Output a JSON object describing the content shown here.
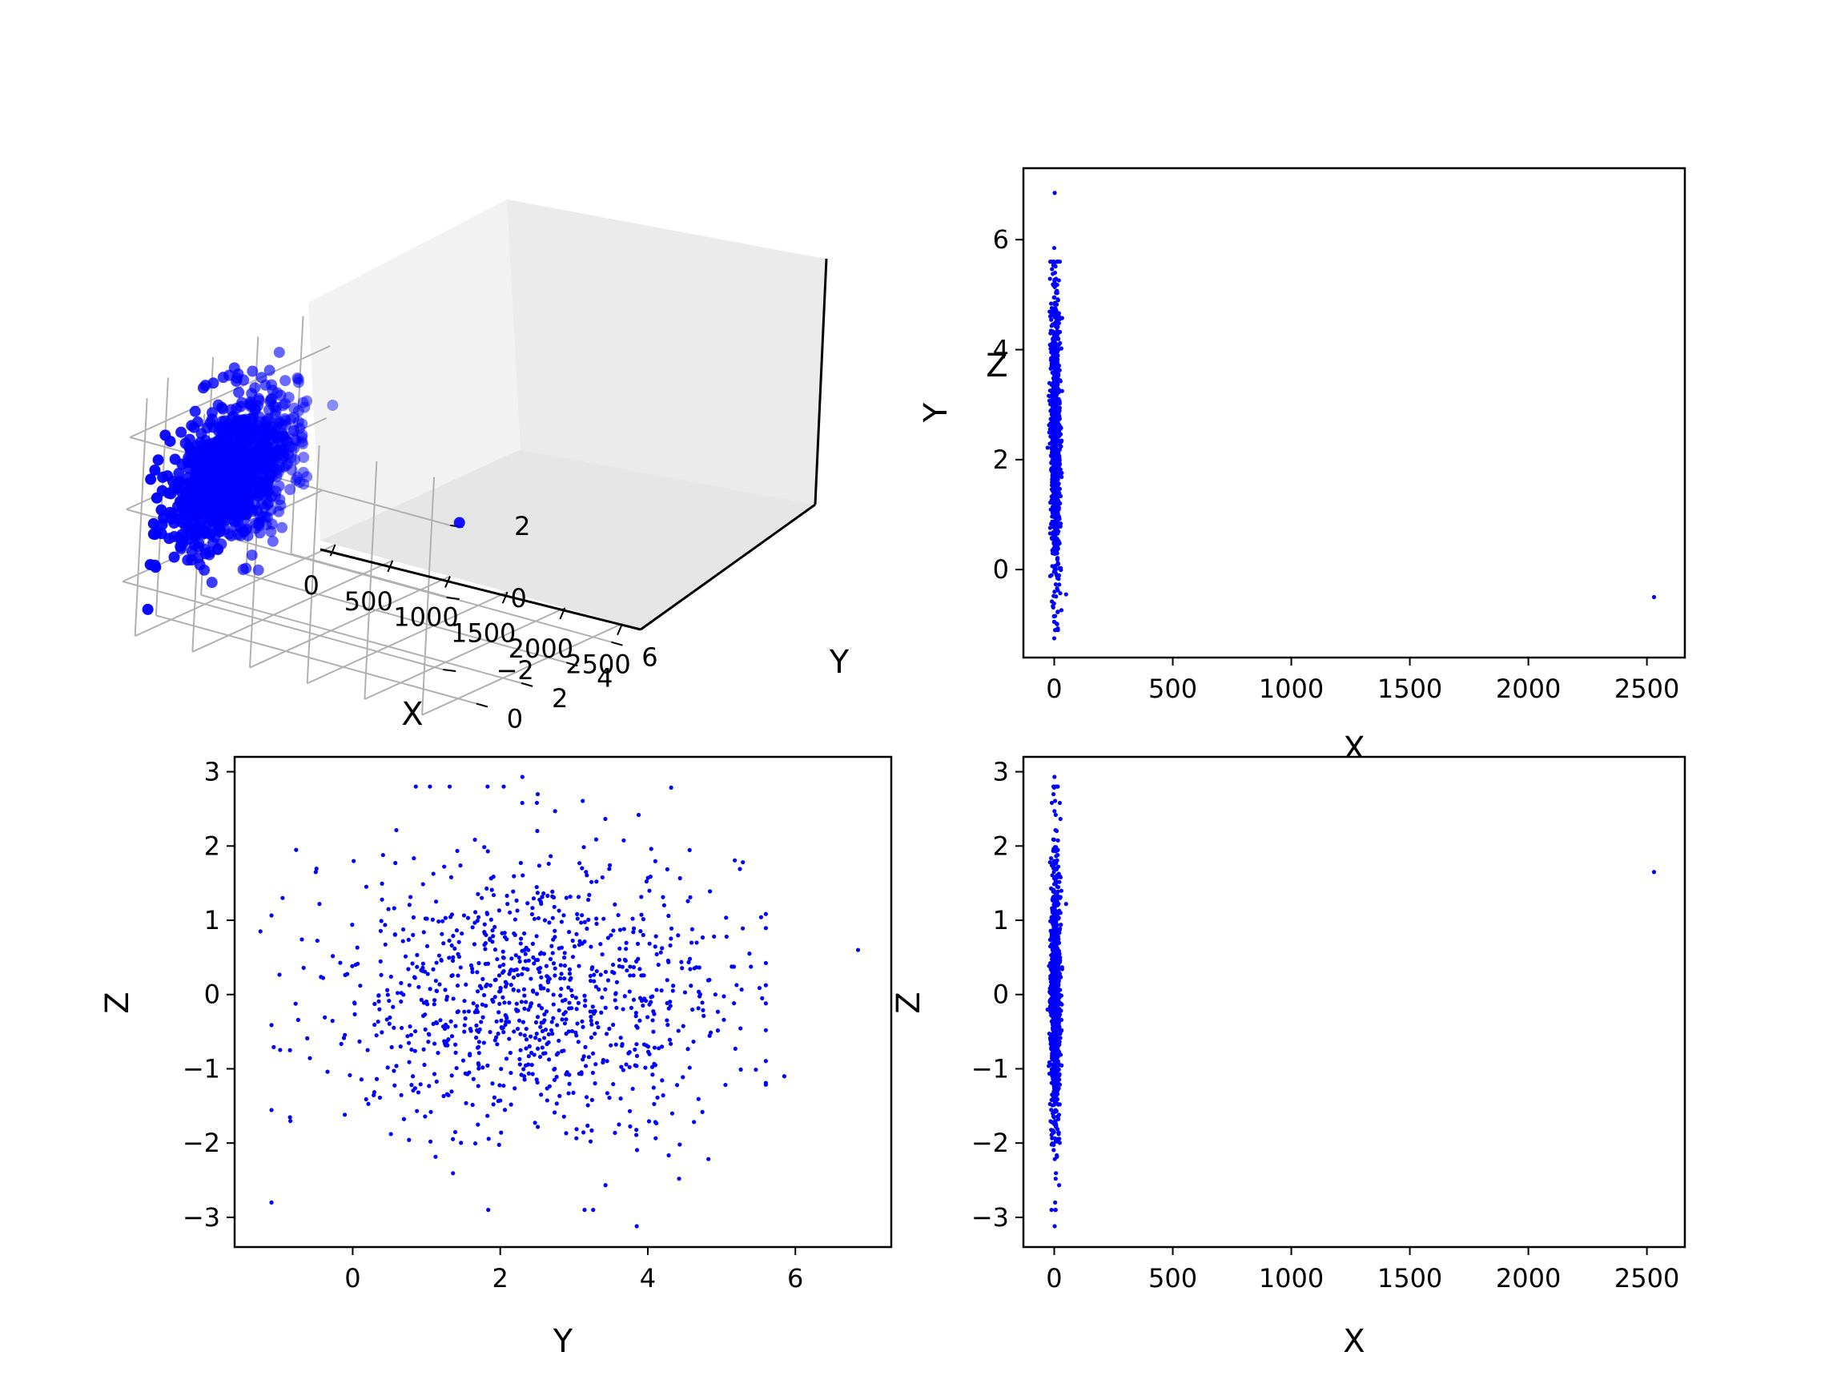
{
  "colors": {
    "points": "#0000ff",
    "pane": "#f2f2f2",
    "grid": "#b0b0b0"
  },
  "chart_data": [
    {
      "id": "xyz3d",
      "type": "scatter",
      "projection": "3d",
      "xlabel": "X",
      "ylabel": "Y",
      "zlabel": "Z",
      "xlim": [
        -130,
        2660
      ],
      "ylim": [
        -1.6,
        7.3
      ],
      "zlim": [
        -3.4,
        3.2
      ],
      "xticks": [
        0,
        500,
        1000,
        1500,
        2000,
        2500
      ],
      "xtick_labels": [
        "0",
        "500",
        "1000",
        "1500",
        "2000",
        "2500"
      ],
      "yticks": [
        0,
        2,
        4,
        6
      ],
      "ytick_labels": [
        "0",
        "2",
        "4",
        "6"
      ],
      "zticks": [
        -2,
        0,
        2
      ],
      "ztick_labels": [
        "−2",
        "0",
        "2"
      ],
      "grid": true,
      "note": "Dense cluster near X≈0, Y≈2.5, Z≈0 (about 1000 points) plus one outlier near X≈2530, Y≈−0.5, Z≈1.6"
    },
    {
      "id": "xy",
      "type": "scatter",
      "xlabel": "X",
      "ylabel": "Y",
      "xlim": [
        -130,
        2660
      ],
      "ylim": [
        -1.6,
        7.3
      ],
      "xticks": [
        0,
        500,
        1000,
        1500,
        2000,
        2500
      ],
      "xtick_labels": [
        "0",
        "500",
        "1000",
        "1500",
        "2000",
        "2500"
      ],
      "yticks": [
        0,
        2,
        4,
        6
      ],
      "ytick_labels": [
        "0",
        "2",
        "4",
        "6"
      ],
      "grid": false
    },
    {
      "id": "yz",
      "type": "scatter",
      "xlabel": "Y",
      "ylabel": "Z",
      "xlim": [
        -1.6,
        7.3
      ],
      "ylim": [
        -3.4,
        3.2
      ],
      "xticks": [
        0,
        2,
        4,
        6
      ],
      "xtick_labels": [
        "0",
        "2",
        "4",
        "6"
      ],
      "yticks": [
        -3,
        -2,
        -1,
        0,
        1,
        2,
        3
      ],
      "ytick_labels": [
        "−3",
        "−2",
        "−1",
        "0",
        "1",
        "2",
        "3"
      ],
      "grid": false
    },
    {
      "id": "xz",
      "type": "scatter",
      "xlabel": "X",
      "ylabel": "Z",
      "xlim": [
        -130,
        2660
      ],
      "ylim": [
        -3.4,
        3.2
      ],
      "xticks": [
        0,
        500,
        1000,
        1500,
        2000,
        2500
      ],
      "xtick_labels": [
        "0",
        "500",
        "1000",
        "1500",
        "2000",
        "2500"
      ],
      "yticks": [
        -3,
        -2,
        -1,
        0,
        1,
        2,
        3
      ],
      "ytick_labels": [
        "−3",
        "−2",
        "−1",
        "0",
        "1",
        "2",
        "3"
      ],
      "grid": false
    }
  ],
  "points": {
    "count": 1000,
    "x": {
      "mean": 5,
      "sd": 10
    },
    "y": {
      "mean": 2.5,
      "sd": 1.35
    },
    "z": {
      "mean": 0,
      "sd": 1.0
    },
    "outliers": [
      {
        "x": 2530,
        "y": -0.5,
        "z": 1.65
      }
    ],
    "extremes": [
      {
        "x": 2,
        "y": 6.85,
        "z": 0.6
      },
      {
        "x": 0,
        "y": -1.25,
        "z": 0.85
      },
      {
        "x": 1,
        "y": 2.3,
        "z": 2.93
      },
      {
        "x": 2,
        "y": 3.85,
        "z": -3.12
      },
      {
        "x": 50,
        "y": -0.45,
        "z": 1.22
      },
      {
        "x": 25,
        "y": 1.75,
        "z": 1.3
      },
      {
        "x": 0,
        "y": 5.85,
        "z": -1.1
      },
      {
        "x": 0,
        "y": 5.55,
        "z": -0.05
      },
      {
        "x": 0,
        "y": -0.85,
        "z": -0.75
      },
      {
        "x": 0,
        "y": -0.95,
        "z": 1.3
      }
    ]
  }
}
